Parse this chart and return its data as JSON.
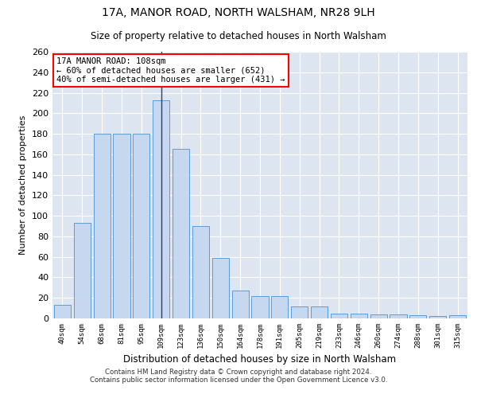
{
  "title1": "17A, MANOR ROAD, NORTH WALSHAM, NR28 9LH",
  "title2": "Size of property relative to detached houses in North Walsham",
  "xlabel": "Distribution of detached houses by size in North Walsham",
  "ylabel": "Number of detached properties",
  "categories": [
    "40sqm",
    "54sqm",
    "68sqm",
    "81sqm",
    "95sqm",
    "109sqm",
    "123sqm",
    "136sqm",
    "150sqm",
    "164sqm",
    "178sqm",
    "191sqm",
    "205sqm",
    "219sqm",
    "233sqm",
    "246sqm",
    "260sqm",
    "274sqm",
    "288sqm",
    "301sqm",
    "315sqm"
  ],
  "values": [
    13,
    93,
    180,
    180,
    180,
    213,
    165,
    90,
    59,
    27,
    22,
    22,
    12,
    12,
    5,
    5,
    4,
    4,
    3,
    2,
    3
  ],
  "bar_color": "#c5d8f0",
  "bar_edge_color": "#5b9bd5",
  "highlight_index": 5,
  "highlight_line_color": "#2c3e6e",
  "annotation_line1": "17A MANOR ROAD: 108sqm",
  "annotation_line2": "← 60% of detached houses are smaller (652)",
  "annotation_line3": "40% of semi-detached houses are larger (431) →",
  "annotation_box_color": "white",
  "annotation_box_edge_color": "red",
  "ylim": [
    0,
    260
  ],
  "yticks": [
    0,
    20,
    40,
    60,
    80,
    100,
    120,
    140,
    160,
    180,
    200,
    220,
    240,
    260
  ],
  "background_color": "#dde6f0",
  "grid_color": "white",
  "footer1": "Contains HM Land Registry data © Crown copyright and database right 2024.",
  "footer2": "Contains public sector information licensed under the Open Government Licence v3.0."
}
